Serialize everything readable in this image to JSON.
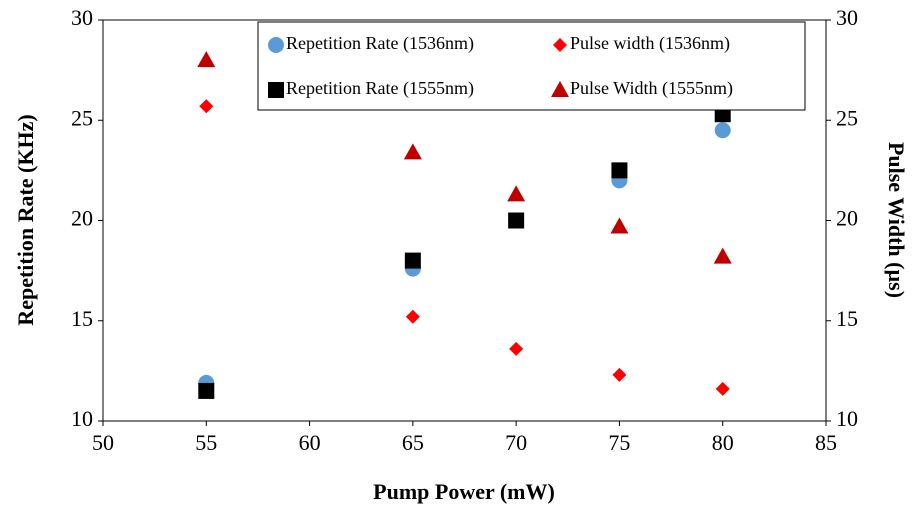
{
  "chart_data": {
    "type": "scatter",
    "x_label": "Pump Power (mW)",
    "y_label": "Repetition Rate (KHz)",
    "y2_label": "Pulse Width (µs)",
    "x": [
      55,
      65,
      70,
      75,
      80
    ],
    "series": [
      {
        "name": "Repetition Rate (1536nm)",
        "color": "#5b9bd5",
        "marker": "circle",
        "axis": "y",
        "values": [
          11.9,
          17.6,
          20,
          22,
          24.5
        ]
      },
      {
        "name": "Pulse width (1536nm)",
        "color": "#ff0000",
        "marker": "diamond",
        "axis": "y2",
        "values": [
          25.7,
          15.2,
          13.6,
          12.3,
          11.6
        ]
      },
      {
        "name": "Repetition Rate (1555nm)",
        "color": "#000000",
        "marker": "square",
        "axis": "y",
        "values": [
          11.5,
          18,
          20,
          22.5,
          25.3
        ]
      },
      {
        "name": "Pulse Width (1555nm)",
        "color": "#c00000",
        "marker": "triangle",
        "axis": "y2",
        "values": [
          28,
          23.4,
          21.3,
          19.7,
          18.2
        ]
      }
    ],
    "xlim": [
      50,
      85
    ],
    "xticks": [
      50,
      55,
      60,
      65,
      70,
      75,
      80,
      85
    ],
    "ylim": [
      10,
      30
    ],
    "yticks": [
      10,
      15,
      20,
      25,
      30
    ],
    "y2lim": [
      10,
      30
    ],
    "y2ticks": [
      10,
      15,
      20,
      25,
      30
    ],
    "grid": false,
    "legend": "top"
  }
}
